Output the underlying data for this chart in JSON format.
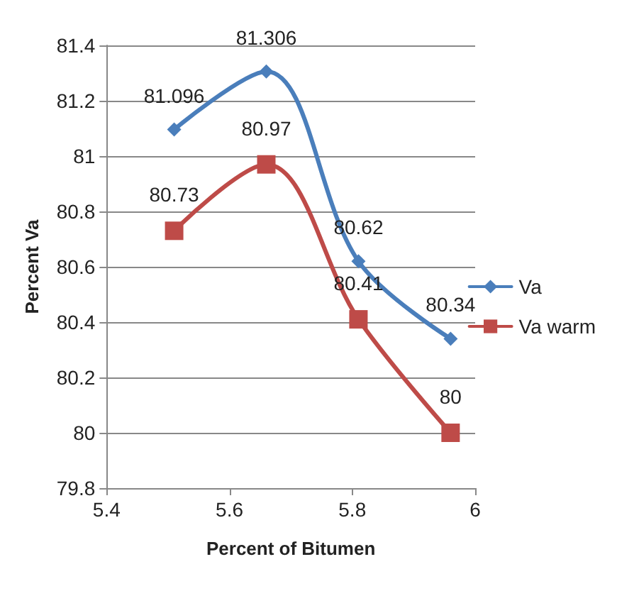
{
  "chart_data": {
    "type": "line",
    "xlabel": "Percent of Bitumen",
    "ylabel": "Percent Va",
    "x": [
      5.51,
      5.66,
      5.81,
      5.96
    ],
    "series": [
      {
        "name": "Va",
        "color": "#4a7ebb",
        "values": [
          81.096,
          81.306,
          80.62,
          80.34
        ],
        "marker": "diamond"
      },
      {
        "name": "Va warm",
        "color": "#be4b48",
        "values": [
          80.73,
          80.97,
          80.41,
          80
        ],
        "marker": "square"
      }
    ],
    "xlim": [
      5.4,
      6
    ],
    "xticks": [
      5.4,
      5.6,
      5.8,
      6
    ],
    "ylim": [
      79.8,
      81.4
    ],
    "yticks": [
      79.8,
      80,
      80.2,
      80.4,
      80.6,
      80.8,
      81,
      81.2,
      81.4
    ],
    "grid": "y",
    "legend": "right",
    "data_labels": true
  }
}
